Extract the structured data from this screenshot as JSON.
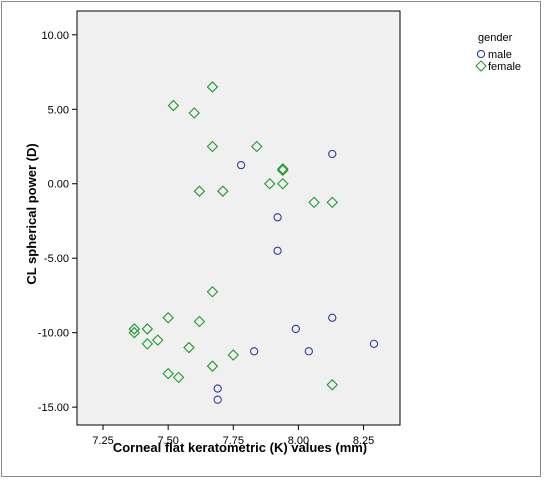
{
  "chart_data": {
    "type": "scatter",
    "title": "",
    "xlabel": "Corneal flat keratometric (K) values (mm)",
    "ylabel": "CL spherical power (D)",
    "xlim": [
      7.15,
      8.39
    ],
    "ylim": [
      -16.2,
      11.6
    ],
    "xticks": [
      "7.25",
      "7.50",
      "7.75",
      "8.00",
      "8.25"
    ],
    "xtick_values": [
      7.25,
      7.5,
      7.75,
      8.0,
      8.25
    ],
    "yticks": [
      "10.00",
      "5.00",
      "0.00",
      "-5.00",
      "-10.00",
      "-15.00"
    ],
    "ytick_values": [
      10,
      5,
      0,
      -5,
      -10,
      -15
    ],
    "grid": false,
    "legend": {
      "title": "gender",
      "position": "right",
      "entries": [
        {
          "label": "male",
          "marker": "circle",
          "color": "#2f3e9e"
        },
        {
          "label": "female",
          "marker": "diamond",
          "color": "#1e9b2e"
        }
      ]
    },
    "plot_background": "#f0f0f0",
    "series": [
      {
        "name": "male",
        "marker": "circle",
        "color": "#2f3e9e",
        "points": [
          [
            7.78,
            1.25
          ],
          [
            8.13,
            2.0
          ],
          [
            7.92,
            -2.25
          ],
          [
            7.92,
            -4.5
          ],
          [
            8.13,
            -9.0
          ],
          [
            7.99,
            -9.75
          ],
          [
            8.29,
            -10.75
          ],
          [
            7.83,
            -11.25
          ],
          [
            8.04,
            -11.25
          ],
          [
            7.69,
            -13.75
          ],
          [
            7.69,
            -14.5
          ]
        ]
      },
      {
        "name": "female",
        "marker": "diamond",
        "color": "#1e9b2e",
        "points": [
          [
            7.67,
            6.5
          ],
          [
            7.52,
            5.25
          ],
          [
            7.6,
            4.75
          ],
          [
            7.67,
            2.5
          ],
          [
            7.84,
            2.5
          ],
          [
            7.94,
            1.0
          ],
          [
            7.94,
            0.9
          ],
          [
            7.89,
            0.0
          ],
          [
            7.94,
            0.0
          ],
          [
            7.62,
            -0.5
          ],
          [
            7.71,
            -0.5
          ],
          [
            8.06,
            -1.25
          ],
          [
            8.13,
            -1.25
          ],
          [
            7.67,
            -7.25
          ],
          [
            7.5,
            -9.0
          ],
          [
            7.62,
            -9.25
          ],
          [
            7.37,
            -9.75
          ],
          [
            7.42,
            -9.75
          ],
          [
            7.37,
            -10.0
          ],
          [
            7.46,
            -10.5
          ],
          [
            7.42,
            -10.75
          ],
          [
            7.58,
            -11.0
          ],
          [
            7.75,
            -11.5
          ],
          [
            7.67,
            -12.25
          ],
          [
            7.5,
            -12.75
          ],
          [
            7.54,
            -13.0
          ],
          [
            8.13,
            -13.5
          ]
        ]
      }
    ]
  }
}
